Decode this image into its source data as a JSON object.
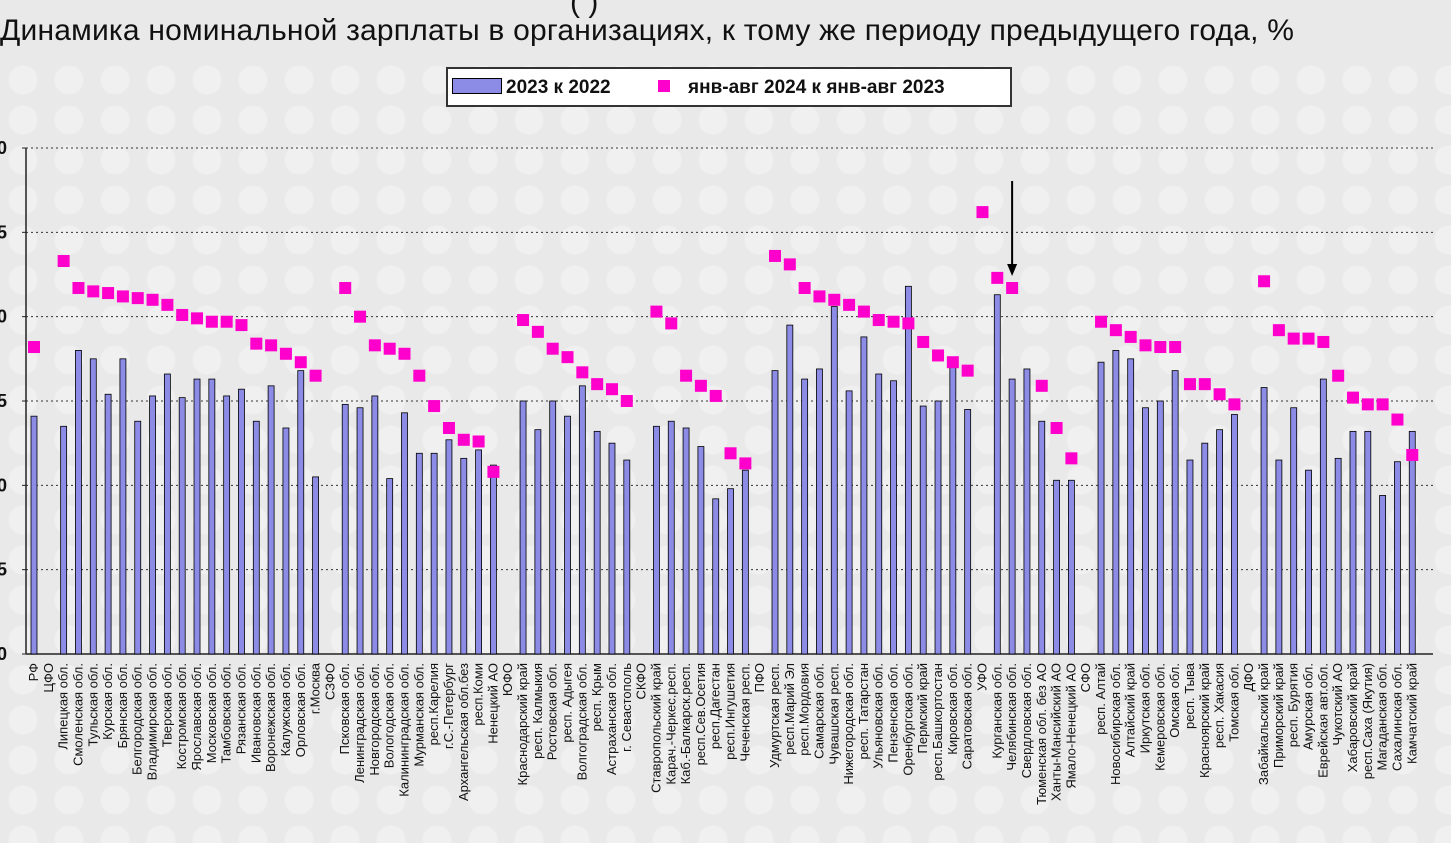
{
  "chart_data": {
    "type": "bar",
    "title": "Динамика номинальной зарплаты в организациях, к тому же периоду предыдущего года, %",
    "top_fragment": "(                    )",
    "legend_position": "top-center",
    "grid": true,
    "y_ticks": [
      "0",
      "5",
      "0",
      "5",
      "0",
      "5",
      "0"
    ],
    "ylim": [
      0,
      30
    ],
    "colors": {
      "bar": "#8c8ce6",
      "bar_border": "#000000",
      "marker": "#ff00cc",
      "arrow": "#000000"
    },
    "series": [
      {
        "name": "2023 к 2022",
        "type": "bar"
      },
      {
        "name": "янв-авг 2024 к янв-авг 2023",
        "type": "scatter"
      }
    ],
    "arrow_marker_index": 66,
    "categories": [
      {
        "label": "РФ",
        "bar": 14.1,
        "dot": 18.2
      },
      {
        "label": "ЦФО",
        "bar": null,
        "dot": null
      },
      {
        "label": "Липецкая обл.",
        "bar": 13.5,
        "dot": 23.3
      },
      {
        "label": "Смоленская обл.",
        "bar": 18.0,
        "dot": 21.7
      },
      {
        "label": "Тульская обл.",
        "bar": 17.5,
        "dot": 21.5
      },
      {
        "label": "Курская обл.",
        "bar": 15.4,
        "dot": 21.4
      },
      {
        "label": "Брянская обл.",
        "bar": 17.5,
        "dot": 21.2
      },
      {
        "label": "Белгородская обл.",
        "bar": 13.8,
        "dot": 21.1
      },
      {
        "label": "Владимирская обл.",
        "bar": 15.3,
        "dot": 21.0
      },
      {
        "label": "Тверская обл.",
        "bar": 16.6,
        "dot": 20.7
      },
      {
        "label": "Костромская обл.",
        "bar": 15.2,
        "dot": 20.1
      },
      {
        "label": "Ярославская обл.",
        "bar": 16.3,
        "dot": 19.9
      },
      {
        "label": "Московская обл.",
        "bar": 16.3,
        "dot": 19.7
      },
      {
        "label": "Тамбовская обл.",
        "bar": 15.3,
        "dot": 19.7
      },
      {
        "label": "Рязанская обл.",
        "bar": 15.7,
        "dot": 19.5
      },
      {
        "label": "Ивановская обл.",
        "bar": 13.8,
        "dot": 18.4
      },
      {
        "label": "Воронежская обл.",
        "bar": 15.9,
        "dot": 18.3
      },
      {
        "label": "Калужская обл.",
        "bar": 13.4,
        "dot": 17.8
      },
      {
        "label": "Орловская обл.",
        "bar": 16.8,
        "dot": 17.3
      },
      {
        "label": "г.Москва",
        "bar": 10.5,
        "dot": 16.5
      },
      {
        "label": "СЗФО",
        "bar": null,
        "dot": null
      },
      {
        "label": "Псковская обл.",
        "bar": 14.8,
        "dot": 21.7
      },
      {
        "label": "Ленинградская обл.",
        "bar": 14.6,
        "dot": 20.0
      },
      {
        "label": "Новгородская обл.",
        "bar": 15.3,
        "dot": 18.3
      },
      {
        "label": "Вологодская обл.",
        "bar": 10.4,
        "dot": 18.1
      },
      {
        "label": "Калининградская обл.",
        "bar": 14.3,
        "dot": 17.8
      },
      {
        "label": "Мурманская обл.",
        "bar": 11.9,
        "dot": 16.5
      },
      {
        "label": "респ.Карелия",
        "bar": 11.9,
        "dot": 14.7
      },
      {
        "label": "г.С.-Петербург",
        "bar": 12.7,
        "dot": 13.4
      },
      {
        "label": "Архангельская обл.без",
        "bar": 11.6,
        "dot": 12.7
      },
      {
        "label": "респ.Коми",
        "bar": 12.1,
        "dot": 12.6
      },
      {
        "label": "Ненецкий АО",
        "bar": 11.2,
        "dot": 10.8
      },
      {
        "label": "ЮФО",
        "bar": null,
        "dot": null
      },
      {
        "label": "Краснодарский край",
        "bar": 15.0,
        "dot": 19.8
      },
      {
        "label": "респ. Калмыкия",
        "bar": 13.3,
        "dot": 19.1
      },
      {
        "label": "Ростовская обл.",
        "bar": 15.0,
        "dot": 18.1
      },
      {
        "label": "респ. Адыгея",
        "bar": 14.1,
        "dot": 17.6
      },
      {
        "label": "Волгоградская обл.",
        "bar": 15.9,
        "dot": 16.7
      },
      {
        "label": "респ. Крым",
        "bar": 13.2,
        "dot": 16.0
      },
      {
        "label": "Астраханская обл.",
        "bar": 12.5,
        "dot": 15.7
      },
      {
        "label": "г. Севастополь",
        "bar": 11.5,
        "dot": 15.0
      },
      {
        "label": "СКФО",
        "bar": null,
        "dot": null
      },
      {
        "label": "Ставропольский край",
        "bar": 13.5,
        "dot": 20.3
      },
      {
        "label": "Карач.-Черкес.респ.",
        "bar": 13.8,
        "dot": 19.6
      },
      {
        "label": "Каб.-Балкарск.респ.",
        "bar": 13.4,
        "dot": 16.5
      },
      {
        "label": "респ.Сев.Осетия",
        "bar": 12.3,
        "dot": 15.9
      },
      {
        "label": "респ.Дагестан",
        "bar": 9.2,
        "dot": 15.3
      },
      {
        "label": "респ.Ингушетия",
        "bar": 9.8,
        "dot": 11.9
      },
      {
        "label": "Чеченская респ.",
        "bar": 10.9,
        "dot": 11.3
      },
      {
        "label": "ПФО",
        "bar": null,
        "dot": null
      },
      {
        "label": "Удмуртская респ.",
        "bar": 16.8,
        "dot": 23.6
      },
      {
        "label": "респ.Марий Эл",
        "bar": 19.5,
        "dot": 23.1
      },
      {
        "label": "респ.Мордовия",
        "bar": 16.3,
        "dot": 21.7
      },
      {
        "label": "Самарская обл.",
        "bar": 16.9,
        "dot": 21.2
      },
      {
        "label": "Чувашская респ.",
        "bar": 20.6,
        "dot": 21.0
      },
      {
        "label": "Нижегородская обл.",
        "bar": 15.6,
        "dot": 20.7
      },
      {
        "label": "респ. Татарстан",
        "bar": 18.8,
        "dot": 20.3
      },
      {
        "label": "Ульяновская обл.",
        "bar": 16.6,
        "dot": 19.8
      },
      {
        "label": "Пензенская обл.",
        "bar": 16.2,
        "dot": 19.7
      },
      {
        "label": "Оренбургская обл.",
        "bar": 21.8,
        "dot": 19.6
      },
      {
        "label": "Пермский край",
        "bar": 14.7,
        "dot": 18.5
      },
      {
        "label": "респ.Башкортостан",
        "bar": 15.0,
        "dot": 17.7
      },
      {
        "label": "Кировская обл.",
        "bar": 17.0,
        "dot": 17.3
      },
      {
        "label": "Саратовская обл.",
        "bar": 14.5,
        "dot": 16.8
      },
      {
        "label": "УФО",
        "bar": null,
        "dot": 26.2
      },
      {
        "label": "Курганская обл.",
        "bar": 21.3,
        "dot": 22.3
      },
      {
        "label": "Челябинская обл.",
        "bar": 16.3,
        "dot": 21.7
      },
      {
        "label": "Свердловская обл.",
        "bar": 16.9,
        "dot": null
      },
      {
        "label": "Тюменская обл. без АО",
        "bar": 13.8,
        "dot": 15.9
      },
      {
        "label": "Ханты-Мансийский АО",
        "bar": 10.3,
        "dot": 13.4
      },
      {
        "label": "Ямало-Ненецкий АО",
        "bar": 10.3,
        "dot": 11.6
      },
      {
        "label": "СФО",
        "bar": null,
        "dot": null
      },
      {
        "label": "респ. Алтай",
        "bar": 17.3,
        "dot": 19.7
      },
      {
        "label": "Новосибирская обл.",
        "bar": 18.0,
        "dot": 19.2
      },
      {
        "label": "Алтайский край",
        "bar": 17.5,
        "dot": 18.8
      },
      {
        "label": "Иркутская обл.",
        "bar": 14.6,
        "dot": 18.3
      },
      {
        "label": "Кемеровская обл.",
        "bar": 15.0,
        "dot": 18.2
      },
      {
        "label": "Омская обл.",
        "bar": 16.8,
        "dot": 18.2
      },
      {
        "label": "респ. Тыва",
        "bar": 11.5,
        "dot": 16.0
      },
      {
        "label": "Красноярский край",
        "bar": 12.5,
        "dot": 16.0
      },
      {
        "label": "респ. Хакасия",
        "bar": 13.3,
        "dot": 15.4
      },
      {
        "label": "Томская обл.",
        "bar": 14.2,
        "dot": 14.8
      },
      {
        "label": "ДФО",
        "bar": null,
        "dot": null
      },
      {
        "label": "Забайкальский край",
        "bar": 15.8,
        "dot": 22.1
      },
      {
        "label": "Приморский край",
        "bar": 11.5,
        "dot": 19.2
      },
      {
        "label": "респ. Бурятия",
        "bar": 14.6,
        "dot": 18.7
      },
      {
        "label": "Амурская обл.",
        "bar": 10.9,
        "dot": 18.7
      },
      {
        "label": "Еврейская авт.обл.",
        "bar": 16.3,
        "dot": 18.5
      },
      {
        "label": "Чукотский АО",
        "bar": 11.6,
        "dot": 16.5
      },
      {
        "label": "Хабаровский край",
        "bar": 13.2,
        "dot": 15.2
      },
      {
        "label": "респ.Саха (Якутия)",
        "bar": 13.2,
        "dot": 14.8
      },
      {
        "label": "Магаданская обл.",
        "bar": 9.4,
        "dot": 14.8
      },
      {
        "label": "Сахалинская обл.",
        "bar": 11.4,
        "dot": 13.9
      },
      {
        "label": "Камчатский край",
        "bar": 13.2,
        "dot": 11.8
      }
    ]
  }
}
